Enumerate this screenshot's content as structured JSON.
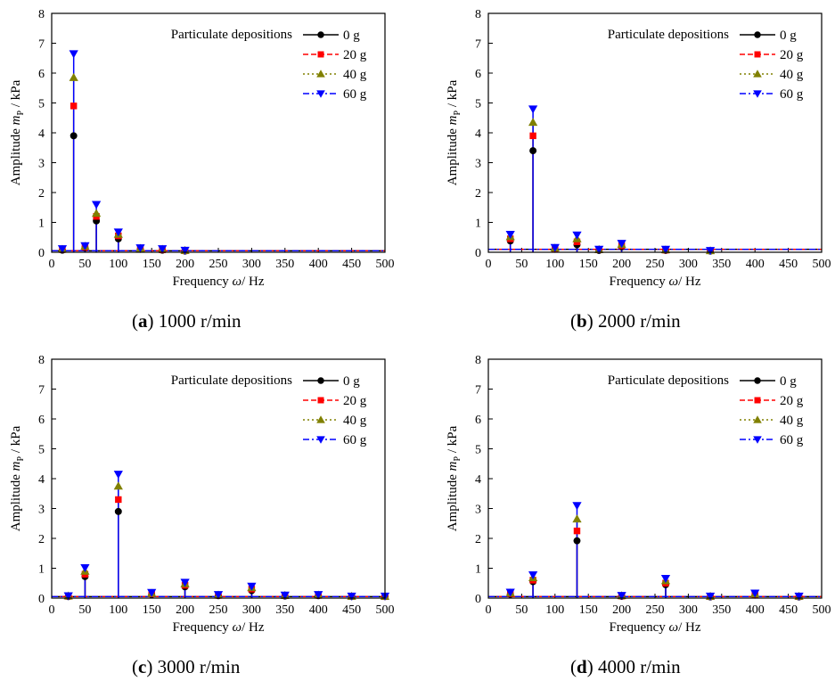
{
  "figure": {
    "legend_title": "Particulate depositions",
    "ylabel_main": "Amplitude ",
    "ylabel_sym": "m",
    "ylabel_sub": "P",
    "ylabel_unit": " / kPa",
    "xlabel_main": "Frequency ",
    "xlabel_sym": "ω",
    "xlabel_unit": "/ Hz",
    "series_colors": [
      "#000000",
      "#ff0000",
      "#808000",
      "#0000ff"
    ]
  },
  "panels": [
    {
      "letter": "a",
      "caption_open": "(",
      "caption_close": ")",
      "caption_text": " 1000 r/min"
    },
    {
      "letter": "b",
      "caption_open": "(",
      "caption_close": ")",
      "caption_text": " 2000 r/min"
    },
    {
      "letter": "c",
      "caption_open": "(",
      "caption_close": ")",
      "caption_text": " 3000 r/min"
    },
    {
      "letter": "d",
      "caption_open": "(",
      "caption_close": ")",
      "caption_text": " 4000 r/min"
    }
  ],
  "chart_data": [
    {
      "type": "line",
      "xlim": [
        0,
        500
      ],
      "ylim": [
        0,
        8
      ],
      "xticks": [
        0,
        50,
        100,
        150,
        200,
        250,
        300,
        350,
        400,
        450,
        500
      ],
      "yticks": [
        0,
        1,
        2,
        3,
        4,
        5,
        6,
        7,
        8
      ],
      "legend_position": "top-right",
      "baseline": 0.05,
      "peaks_x": [
        16,
        33,
        50,
        67,
        100,
        133,
        166,
        200
      ],
      "series": [
        {
          "name": "0 g",
          "marker": "circle",
          "dash": "solid",
          "values": [
            0.07,
            3.9,
            0.15,
            1.05,
            0.45,
            0.1,
            0.07,
            0.04
          ]
        },
        {
          "name": "20 g",
          "marker": "square",
          "dash": "dash",
          "values": [
            0.09,
            4.9,
            0.17,
            1.2,
            0.55,
            0.12,
            0.08,
            0.05
          ]
        },
        {
          "name": "40 g",
          "marker": "triangle-up",
          "dash": "dot",
          "values": [
            0.1,
            5.85,
            0.2,
            1.3,
            0.6,
            0.13,
            0.1,
            0.06
          ]
        },
        {
          "name": "60 g",
          "marker": "triangle-down",
          "dash": "dashdot",
          "values": [
            0.12,
            6.65,
            0.22,
            1.6,
            0.68,
            0.15,
            0.12,
            0.07
          ]
        }
      ]
    },
    {
      "type": "line",
      "xlim": [
        0,
        500
      ],
      "ylim": [
        0,
        8
      ],
      "xticks": [
        0,
        50,
        100,
        150,
        200,
        250,
        300,
        350,
        400,
        450,
        500
      ],
      "yticks": [
        0,
        1,
        2,
        3,
        4,
        5,
        6,
        7,
        8
      ],
      "legend_position": "top-right",
      "baseline": 0.1,
      "peaks_x": [
        33,
        67,
        100,
        133,
        166,
        200,
        266,
        333
      ],
      "series": [
        {
          "name": "0 g",
          "marker": "circle",
          "dash": "solid",
          "values": [
            0.38,
            3.4,
            0.1,
            0.25,
            0.06,
            0.18,
            0.06,
            0.04
          ]
        },
        {
          "name": "20 g",
          "marker": "square",
          "dash": "dash",
          "values": [
            0.45,
            3.9,
            0.12,
            0.35,
            0.08,
            0.22,
            0.07,
            0.05
          ]
        },
        {
          "name": "40 g",
          "marker": "triangle-up",
          "dash": "dot",
          "values": [
            0.52,
            4.35,
            0.14,
            0.45,
            0.09,
            0.26,
            0.08,
            0.05
          ]
        },
        {
          "name": "60 g",
          "marker": "triangle-down",
          "dash": "dashdot",
          "values": [
            0.6,
            4.8,
            0.16,
            0.58,
            0.1,
            0.3,
            0.1,
            0.06
          ]
        }
      ]
    },
    {
      "type": "line",
      "xlim": [
        0,
        500
      ],
      "ylim": [
        0,
        8
      ],
      "xticks": [
        0,
        50,
        100,
        150,
        200,
        250,
        300,
        350,
        400,
        450,
        500
      ],
      "yticks": [
        0,
        1,
        2,
        3,
        4,
        5,
        6,
        7,
        8
      ],
      "legend_position": "top-right",
      "baseline": 0.05,
      "peaks_x": [
        25,
        50,
        100,
        150,
        200,
        250,
        300,
        350,
        400,
        450,
        500
      ],
      "series": [
        {
          "name": "0 g",
          "marker": "circle",
          "dash": "solid",
          "values": [
            0.05,
            0.72,
            2.9,
            0.12,
            0.38,
            0.08,
            0.25,
            0.07,
            0.08,
            0.05,
            0.05
          ]
        },
        {
          "name": "20 g",
          "marker": "square",
          "dash": "dash",
          "values": [
            0.06,
            0.8,
            3.3,
            0.14,
            0.43,
            0.09,
            0.3,
            0.08,
            0.09,
            0.06,
            0.05
          ]
        },
        {
          "name": "40 g",
          "marker": "triangle-up",
          "dash": "dot",
          "values": [
            0.07,
            0.9,
            3.75,
            0.16,
            0.48,
            0.1,
            0.35,
            0.09,
            0.1,
            0.06,
            0.06
          ]
        },
        {
          "name": "60 g",
          "marker": "triangle-down",
          "dash": "dashdot",
          "values": [
            0.08,
            1.02,
            4.15,
            0.19,
            0.53,
            0.12,
            0.4,
            0.1,
            0.12,
            0.07,
            0.07
          ]
        }
      ]
    },
    {
      "type": "line",
      "xlim": [
        0,
        500
      ],
      "ylim": [
        0,
        8
      ],
      "xticks": [
        0,
        50,
        100,
        150,
        200,
        250,
        300,
        350,
        400,
        450,
        500
      ],
      "yticks": [
        0,
        1,
        2,
        3,
        4,
        5,
        6,
        7,
        8
      ],
      "legend_position": "top-right",
      "baseline": 0.05,
      "peaks_x": [
        33,
        67,
        133,
        200,
        266,
        333,
        400,
        466
      ],
      "series": [
        {
          "name": "0 g",
          "marker": "circle",
          "dash": "solid",
          "values": [
            0.13,
            0.55,
            1.92,
            0.06,
            0.45,
            0.04,
            0.1,
            0.04
          ]
        },
        {
          "name": "20 g",
          "marker": "square",
          "dash": "dash",
          "values": [
            0.15,
            0.6,
            2.25,
            0.07,
            0.5,
            0.05,
            0.12,
            0.05
          ]
        },
        {
          "name": "40 g",
          "marker": "triangle-up",
          "dash": "dot",
          "values": [
            0.17,
            0.68,
            2.65,
            0.08,
            0.58,
            0.06,
            0.14,
            0.06
          ]
        },
        {
          "name": "60 g",
          "marker": "triangle-down",
          "dash": "dashdot",
          "values": [
            0.2,
            0.78,
            3.1,
            0.09,
            0.66,
            0.07,
            0.17,
            0.07
          ]
        }
      ]
    }
  ]
}
